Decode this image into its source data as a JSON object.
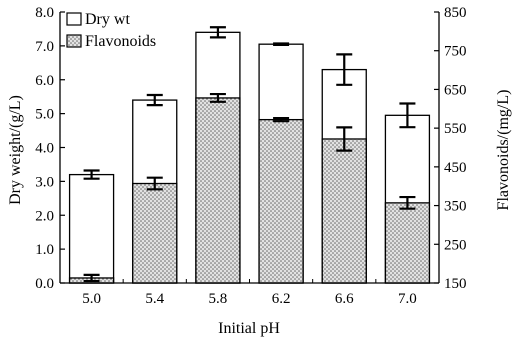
{
  "chart_data": {
    "type": "bar",
    "title": "",
    "xlabel": "Initial pH",
    "ylabel": "Dry weight/(g/L)",
    "y2label": "Flavonoids/(mg/L)",
    "categories": [
      "5.0",
      "5.4",
      "5.8",
      "6.2",
      "6.6",
      "7.0"
    ],
    "ylim": [
      0,
      8
    ],
    "y2lim": [
      150,
      850
    ],
    "yticks": [
      "0.0",
      "1.0",
      "2.0",
      "3.0",
      "4.0",
      "5.0",
      "6.0",
      "7.0",
      "8.0"
    ],
    "y2ticks": [
      "150",
      "250",
      "350",
      "450",
      "550",
      "650",
      "750",
      "850"
    ],
    "grid": false,
    "legend": {
      "position": "top-left"
    },
    "series": [
      {
        "name": "Dry wt",
        "axis": "left",
        "fill": "#ffffff",
        "pattern": "none",
        "values": [
          3.2,
          5.4,
          7.4,
          7.05,
          6.3,
          4.95
        ],
        "errors": [
          0.12,
          0.15,
          0.15,
          0.02,
          0.45,
          0.35
        ]
      },
      {
        "name": "Flavonoids",
        "axis": "right",
        "fill": "#e2e2e2",
        "pattern": "dots",
        "values": [
          163,
          407,
          628,
          572,
          522,
          357
        ],
        "errors": [
          8,
          15,
          10,
          4,
          30,
          15
        ]
      }
    ],
    "colors": {
      "axis": "#000000",
      "bar_edge": "#000000",
      "dot": "#666666"
    }
  }
}
